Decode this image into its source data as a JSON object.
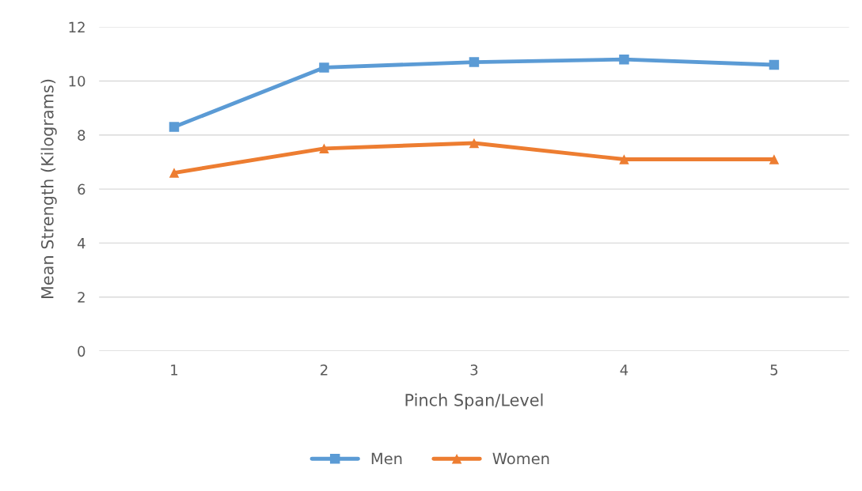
{
  "chart_data": {
    "type": "line",
    "xlabel": "Pinch Span/Level",
    "ylabel": "Mean Strength (Kilograms)",
    "categories": [
      "1",
      "2",
      "3",
      "4",
      "5"
    ],
    "series": [
      {
        "name": "Men",
        "color": "#5b9bd5",
        "marker": "square",
        "values": [
          8.3,
          10.5,
          10.7,
          10.8,
          10.6
        ]
      },
      {
        "name": "Women",
        "color": "#ed7d31",
        "marker": "triangle",
        "values": [
          6.6,
          7.5,
          7.7,
          7.1,
          7.1
        ]
      }
    ],
    "ylim": [
      0,
      12
    ],
    "yticks": [
      0,
      2,
      4,
      6,
      8,
      10,
      12
    ],
    "grid": "y",
    "legend": "bottom",
    "line_style": "solid"
  }
}
